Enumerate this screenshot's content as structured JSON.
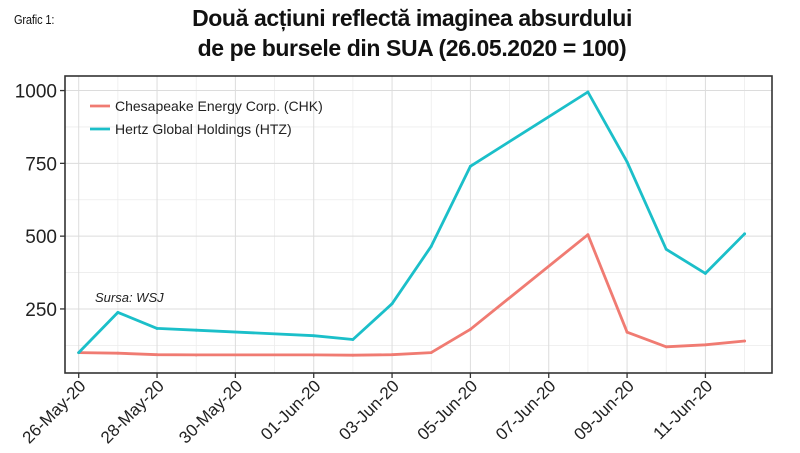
{
  "figure_label": "Grafic 1:",
  "chart_data": {
    "type": "line",
    "title": [
      "Două acțiuni reflectă imaginea absurdului",
      "de pe bursele din SUA (26.05.2020 = 100)"
    ],
    "xlabel": "",
    "ylabel": "",
    "x": [
      "2020-05-26",
      "2020-05-27",
      "2020-05-28",
      "2020-05-29",
      "2020-06-01",
      "2020-06-02",
      "2020-06-03",
      "2020-06-04",
      "2020-06-05",
      "2020-06-08",
      "2020-06-09",
      "2020-06-10",
      "2020-06-11",
      "2020-06-12"
    ],
    "x_ticks": [
      "26-May-20",
      "28-May-20",
      "30-May-20",
      "01-Jun-20",
      "03-Jun-20",
      "05-Jun-20",
      "07-Jun-20",
      "09-Jun-20",
      "11-Jun-20"
    ],
    "ylim": [
      30,
      1050
    ],
    "y_ticks": [
      250,
      500,
      750,
      1000
    ],
    "grid": true,
    "legend_position": "top-left",
    "series": [
      {
        "name": "Chesapeake Energy Corp. (CHK)",
        "color": "#F07B72",
        "values": [
          100,
          98,
          93,
          92,
          92,
          91,
          93,
          100,
          180,
          505,
          170,
          120,
          127,
          140
        ]
      },
      {
        "name": "Hertz Global Holdings (HTZ)",
        "color": "#1BBFC9",
        "values": [
          100,
          238,
          183,
          177,
          158,
          145,
          268,
          465,
          740,
          995,
          755,
          455,
          372,
          508
        ]
      }
    ],
    "annotation": "Sursa: WSJ"
  }
}
